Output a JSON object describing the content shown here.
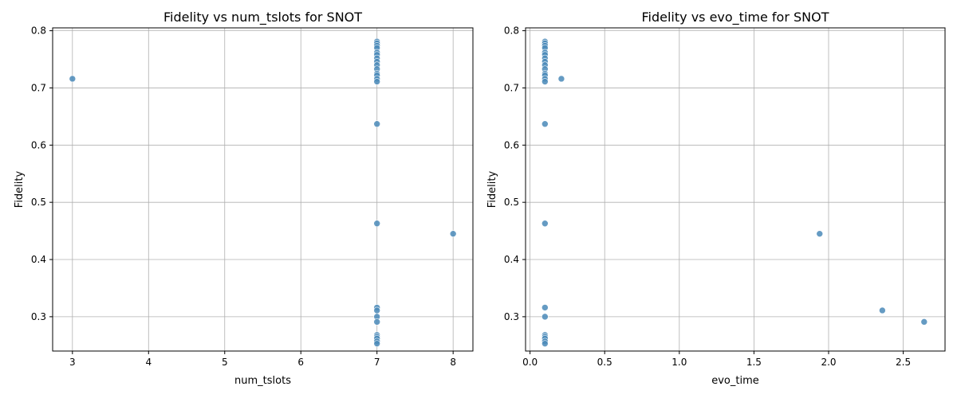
{
  "chart_data": [
    {
      "type": "scatter",
      "title": "Fidelity vs num_tslots for SNOT",
      "xlabel": "num_tslots",
      "ylabel": "Fidelity",
      "xlim": [
        2.74,
        8.26
      ],
      "ylim": [
        0.24,
        0.805
      ],
      "x_ticks": [
        3,
        4,
        5,
        6,
        7,
        8
      ],
      "x_tick_labels": [
        "3",
        "4",
        "5",
        "6",
        "7",
        "8"
      ],
      "y_ticks": [
        0.3,
        0.4,
        0.5,
        0.6,
        0.7,
        0.8
      ],
      "y_tick_labels": [
        "0.3",
        "0.4",
        "0.5",
        "0.6",
        "0.7",
        "0.8"
      ],
      "grid": true,
      "marker_color": "#4a8ab8",
      "points": [
        {
          "x": 3,
          "y": 0.716
        },
        {
          "x": 7,
          "y": 0.781
        },
        {
          "x": 7,
          "y": 0.778
        },
        {
          "x": 7,
          "y": 0.774
        },
        {
          "x": 7,
          "y": 0.77
        },
        {
          "x": 7,
          "y": 0.762
        },
        {
          "x": 7,
          "y": 0.758
        },
        {
          "x": 7,
          "y": 0.752
        },
        {
          "x": 7,
          "y": 0.746
        },
        {
          "x": 7,
          "y": 0.74
        },
        {
          "x": 7,
          "y": 0.733
        },
        {
          "x": 7,
          "y": 0.725
        },
        {
          "x": 7,
          "y": 0.722
        },
        {
          "x": 7,
          "y": 0.716
        },
        {
          "x": 7,
          "y": 0.711
        },
        {
          "x": 7,
          "y": 0.637
        },
        {
          "x": 7,
          "y": 0.463
        },
        {
          "x": 7,
          "y": 0.316
        },
        {
          "x": 7,
          "y": 0.311
        },
        {
          "x": 7,
          "y": 0.3
        },
        {
          "x": 7,
          "y": 0.291
        },
        {
          "x": 7,
          "y": 0.268
        },
        {
          "x": 7,
          "y": 0.265
        },
        {
          "x": 7,
          "y": 0.262
        },
        {
          "x": 7,
          "y": 0.257
        },
        {
          "x": 7,
          "y": 0.253
        },
        {
          "x": 8,
          "y": 0.445
        }
      ]
    },
    {
      "type": "scatter",
      "title": "Fidelity vs evo_time for SNOT",
      "xlabel": "evo_time",
      "ylabel": "Fidelity",
      "xlim": [
        -0.03,
        2.78
      ],
      "ylim": [
        0.24,
        0.805
      ],
      "x_ticks": [
        0,
        0.5,
        1,
        1.5,
        2,
        2.5
      ],
      "x_tick_labels": [
        "0.0",
        "0.5",
        "1.0",
        "1.5",
        "2.0",
        "2.5"
      ],
      "y_ticks": [
        0.3,
        0.4,
        0.5,
        0.6,
        0.7,
        0.8
      ],
      "y_tick_labels": [
        "0.3",
        "0.4",
        "0.5",
        "0.6",
        "0.7",
        "0.8"
      ],
      "grid": true,
      "marker_color": "#4a8ab8",
      "points": [
        {
          "x": 0.1,
          "y": 0.781
        },
        {
          "x": 0.1,
          "y": 0.778
        },
        {
          "x": 0.1,
          "y": 0.774
        },
        {
          "x": 0.1,
          "y": 0.77
        },
        {
          "x": 0.1,
          "y": 0.762
        },
        {
          "x": 0.1,
          "y": 0.758
        },
        {
          "x": 0.1,
          "y": 0.752
        },
        {
          "x": 0.1,
          "y": 0.746
        },
        {
          "x": 0.1,
          "y": 0.74
        },
        {
          "x": 0.1,
          "y": 0.733
        },
        {
          "x": 0.1,
          "y": 0.725
        },
        {
          "x": 0.1,
          "y": 0.722
        },
        {
          "x": 0.1,
          "y": 0.716
        },
        {
          "x": 0.1,
          "y": 0.711
        },
        {
          "x": 0.1,
          "y": 0.637
        },
        {
          "x": 0.1,
          "y": 0.463
        },
        {
          "x": 0.1,
          "y": 0.316
        },
        {
          "x": 0.1,
          "y": 0.3
        },
        {
          "x": 0.1,
          "y": 0.268
        },
        {
          "x": 0.1,
          "y": 0.265
        },
        {
          "x": 0.1,
          "y": 0.262
        },
        {
          "x": 0.1,
          "y": 0.257
        },
        {
          "x": 0.1,
          "y": 0.253
        },
        {
          "x": 0.21,
          "y": 0.716
        },
        {
          "x": 1.94,
          "y": 0.445
        },
        {
          "x": 2.36,
          "y": 0.311
        },
        {
          "x": 2.64,
          "y": 0.291
        }
      ]
    }
  ]
}
